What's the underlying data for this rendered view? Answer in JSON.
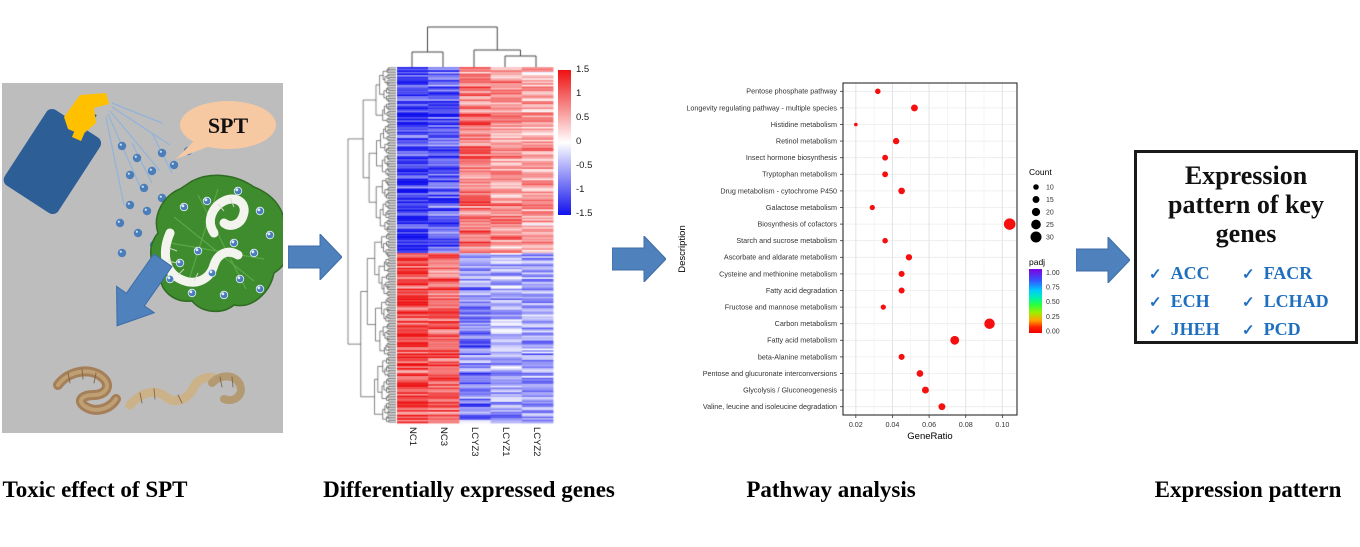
{
  "captions": {
    "panel1": "Toxic effect of SPT",
    "panel2": "Differentially expressed genes",
    "panel3": "Pathway analysis",
    "panel4": "Expression pattern"
  },
  "illustration": {
    "bubble_label": "SPT",
    "colors": {
      "background": "#bdbdbd",
      "bottle": "#2e5e96",
      "trigger": "#ffc000",
      "droplet": "#4a7ebb",
      "spray_line": "#8fb3dc",
      "leaf": "#3e8c2d",
      "leaf_edge": "#2f6b22",
      "worm": "#f4f4ee",
      "dead_worm": "#a57f58",
      "arrow": "#4f81bd",
      "bubble": "#f7c9a2"
    }
  },
  "chart_data": [
    {
      "type": "heatmap",
      "columns": [
        "NC1",
        "NC3",
        "LCYZ3",
        "LCYZ1",
        "LCYZ2"
      ],
      "column_clustering": "((NC1,NC3),(LCYZ3,(LCYZ1,LCYZ2)))",
      "colorbar_ticks": [
        "1.5",
        "1",
        "0.5",
        "0",
        "-0.5",
        "-1",
        "-1.5"
      ],
      "scale": {
        "min": -1.5,
        "max": 1.5,
        "low_color": "#1111ee",
        "mid_color": "#ffffff",
        "high_color": "#ee1111"
      },
      "rows_approx": 220,
      "row_groups": [
        {
          "rows": 115,
          "means": [
            -1.25,
            -1.05,
            0.85,
            0.62,
            0.55
          ],
          "noise": 0.5
        },
        {
          "rows": 105,
          "means": [
            1.2,
            1.02,
            -0.78,
            -0.55,
            -0.62
          ],
          "noise": 0.5
        }
      ]
    },
    {
      "type": "scatter",
      "xlabel": "GeneRatio",
      "ylabel": "Description",
      "x_ticks": [
        0.02,
        0.04,
        0.06,
        0.08,
        0.1
      ],
      "xlim": [
        0.013,
        0.108
      ],
      "point_color": "#f50f0f",
      "pathways": [
        {
          "name": "Pentose phosphate pathway",
          "gene_ratio": 0.032,
          "count": 10,
          "padj": 0.0
        },
        {
          "name": "Longevity regulating pathway - multiple species",
          "gene_ratio": 0.052,
          "count": 15,
          "padj": 0.0
        },
        {
          "name": "Histidine metabolism",
          "gene_ratio": 0.02,
          "count": 3,
          "padj": 0.0
        },
        {
          "name": "Retinol metabolism",
          "gene_ratio": 0.042,
          "count": 13,
          "padj": 0.0
        },
        {
          "name": "Insect hormone biosynthesis",
          "gene_ratio": 0.036,
          "count": 11,
          "padj": 0.0
        },
        {
          "name": "Tryptophan metabolism",
          "gene_ratio": 0.036,
          "count": 11,
          "padj": 0.0
        },
        {
          "name": "Drug metabolism - cytochrome P450",
          "gene_ratio": 0.045,
          "count": 14,
          "padj": 0.0
        },
        {
          "name": "Galactose metabolism",
          "gene_ratio": 0.029,
          "count": 9,
          "padj": 0.0
        },
        {
          "name": "Biosynthesis of cofactors",
          "gene_ratio": 0.104,
          "count": 32,
          "padj": 0.0
        },
        {
          "name": "Starch and sucrose metabolism",
          "gene_ratio": 0.036,
          "count": 10,
          "padj": 0.0
        },
        {
          "name": "Ascorbate and aldarate metabolism",
          "gene_ratio": 0.049,
          "count": 13,
          "padj": 0.0
        },
        {
          "name": "Cysteine and methionine metabolism",
          "gene_ratio": 0.045,
          "count": 12,
          "padj": 0.0
        },
        {
          "name": "Fatty acid degradation",
          "gene_ratio": 0.045,
          "count": 12,
          "padj": 0.0
        },
        {
          "name": "Fructose and mannose metabolism",
          "gene_ratio": 0.035,
          "count": 9,
          "padj": 0.0
        },
        {
          "name": "Carbon metabolism",
          "gene_ratio": 0.093,
          "count": 28,
          "padj": 0.0
        },
        {
          "name": "Fatty acid metabolism",
          "gene_ratio": 0.074,
          "count": 22,
          "padj": 0.0
        },
        {
          "name": "beta-Alanine metabolism",
          "gene_ratio": 0.045,
          "count": 12,
          "padj": 0.0
        },
        {
          "name": "Pentose and glucuronate interconversions",
          "gene_ratio": 0.055,
          "count": 14,
          "padj": 0.0
        },
        {
          "name": "Glycolysis / Gluconeogenesis",
          "gene_ratio": 0.058,
          "count": 15,
          "padj": 0.0
        },
        {
          "name": "Valine, leucine and isoleucine degradation",
          "gene_ratio": 0.067,
          "count": 15,
          "padj": 0.0
        }
      ],
      "legend": {
        "count_title": "Count",
        "count_sizes": [
          10,
          15,
          20,
          25,
          30
        ],
        "padj_title": "padj",
        "padj_ticks": [
          "1.00",
          "0.75",
          "0.50",
          "0.25",
          "0.00"
        ]
      }
    }
  ],
  "expression_box": {
    "title": "Expression pattern of key genes",
    "check_glyph": "✓",
    "genes": [
      "ACC",
      "FACR",
      "ECH",
      "LCHAD",
      "JHEH",
      "PCD"
    ],
    "text_color": "#1f6fbf"
  }
}
